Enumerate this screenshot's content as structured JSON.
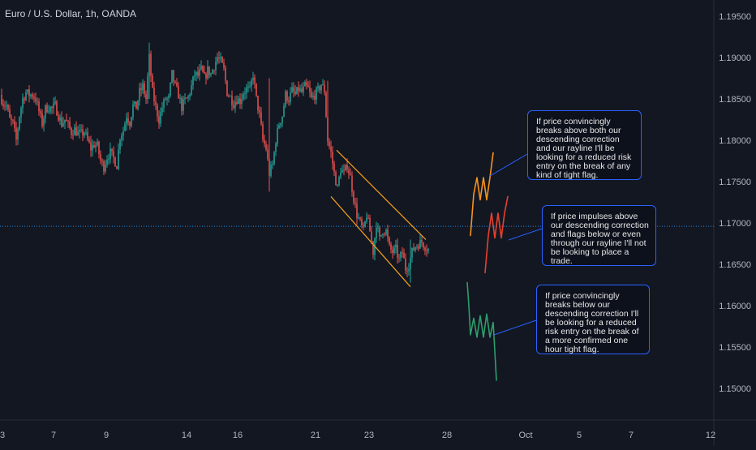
{
  "header": {
    "title": "Euro / U.S. Dollar, 1h, OANDA"
  },
  "colors": {
    "background": "#131722",
    "up_candle": "#26a69a",
    "down_candle": "#ef5350",
    "channel": "#f7a21b",
    "scenario_orange": "#f7931e",
    "scenario_red": "#e8402d",
    "scenario_green": "#2e9e6b",
    "annotation_border": "#2962ff",
    "current_price_line": "#2196f3"
  },
  "annotations": [
    {
      "text": "If price convincingly breaks above both our descending correction and our rayline I'll be looking for a reduced risk entry on the break of any kind of tight flag."
    },
    {
      "text": "If price impulses above our descending correction and flags below or even through our rayline I'll not be looking to place a trade."
    },
    {
      "text": "If price convincingly breaks below our descending correction I'll be looking for a reduced risk entry on the break of a more confirmed one hour tight flag."
    }
  ],
  "chart_data": {
    "type": "candlestick",
    "title": "Euro / U.S. Dollar, 1h, OANDA",
    "y_axis": {
      "position": "right",
      "range": [
        1.1455,
        1.1965
      ],
      "tick_labels": [
        "1.19500",
        "1.19000",
        "1.18500",
        "1.18000",
        "1.17500",
        "1.17000",
        "1.16500",
        "1.16000",
        "1.15500",
        "1.15000"
      ]
    },
    "x_axis": {
      "tick_labels": [
        "3",
        "7",
        "9",
        "14",
        "16",
        "21",
        "23",
        "28",
        "Oct",
        "5",
        "7",
        "12"
      ]
    },
    "current_price_line": 1.1696,
    "price_path": [
      [
        0,
        1.1855
      ],
      [
        4,
        1.1845
      ],
      [
        8,
        1.1842
      ],
      [
        12,
        1.1825
      ],
      [
        16,
        1.182
      ],
      [
        20,
        1.18
      ],
      [
        24,
        1.183
      ],
      [
        28,
        1.185
      ],
      [
        32,
        1.1858
      ],
      [
        36,
        1.1855
      ],
      [
        40,
        1.1855
      ],
      [
        44,
        1.185
      ],
      [
        48,
        1.1835
      ],
      [
        52,
        1.182
      ],
      [
        56,
        1.1838
      ],
      [
        60,
        1.184
      ],
      [
        64,
        1.1838
      ],
      [
        68,
        1.1842
      ],
      [
        72,
        1.183
      ],
      [
        76,
        1.182
      ],
      [
        80,
        1.1825
      ],
      [
        84,
        1.1818
      ],
      [
        88,
        1.181
      ],
      [
        92,
        1.1813
      ],
      [
        96,
        1.1808
      ],
      [
        100,
        1.1808
      ],
      [
        104,
        1.181
      ],
      [
        108,
        1.18
      ],
      [
        112,
        1.179
      ],
      [
        116,
        1.1795
      ],
      [
        120,
        1.1793
      ],
      [
        124,
        1.1775
      ],
      [
        128,
        1.1768
      ],
      [
        132,
        1.178
      ],
      [
        136,
        1.1785
      ],
      [
        140,
        1.1778
      ],
      [
        144,
        1.177
      ],
      [
        148,
        1.1805
      ],
      [
        152,
        1.1812
      ],
      [
        156,
        1.183
      ],
      [
        160,
        1.1822
      ],
      [
        164,
        1.1842
      ],
      [
        168,
        1.184
      ],
      [
        172,
        1.1858
      ],
      [
        176,
        1.1865
      ],
      [
        180,
        1.185
      ],
      [
        184,
        1.19
      ],
      [
        188,
        1.1858
      ],
      [
        192,
        1.184
      ],
      [
        196,
        1.1825
      ],
      [
        200,
        1.184
      ],
      [
        204,
        1.185
      ],
      [
        208,
        1.185
      ],
      [
        212,
        1.188
      ],
      [
        216,
        1.1865
      ],
      [
        220,
        1.1855
      ],
      [
        224,
        1.184
      ],
      [
        228,
        1.1848
      ],
      [
        232,
        1.1852
      ],
      [
        236,
        1.1865
      ],
      [
        240,
        1.188
      ],
      [
        244,
        1.1878
      ],
      [
        248,
        1.1885
      ],
      [
        252,
        1.1875
      ],
      [
        256,
        1.1885
      ],
      [
        260,
        1.188
      ],
      [
        264,
        1.189
      ],
      [
        268,
        1.19
      ],
      [
        272,
        1.1895
      ],
      [
        276,
        1.1885
      ],
      [
        280,
        1.1858
      ],
      [
        284,
        1.1852
      ],
      [
        288,
        1.1845
      ],
      [
        292,
        1.185
      ],
      [
        296,
        1.1848
      ],
      [
        300,
        1.1858
      ],
      [
        304,
        1.1862
      ],
      [
        308,
        1.186
      ],
      [
        312,
        1.188
      ],
      [
        316,
        1.185
      ],
      [
        320,
        1.183
      ],
      [
        324,
        1.18
      ],
      [
        328,
        1.179
      ],
      [
        332,
        1.176
      ],
      [
        336,
        1.177
      ],
      [
        340,
        1.18
      ],
      [
        344,
        1.182
      ],
      [
        348,
        1.183
      ],
      [
        352,
        1.1855
      ],
      [
        356,
        1.185
      ],
      [
        360,
        1.186
      ],
      [
        364,
        1.1855
      ],
      [
        368,
        1.1862
      ],
      [
        372,
        1.1858
      ],
      [
        376,
        1.1865
      ],
      [
        380,
        1.1862
      ],
      [
        384,
        1.185
      ],
      [
        388,
        1.1855
      ],
      [
        392,
        1.186
      ],
      [
        396,
        1.1868
      ],
      [
        400,
        1.186
      ],
      [
        404,
        1.18
      ],
      [
        408,
        1.1785
      ],
      [
        412,
        1.176
      ],
      [
        416,
        1.1742
      ],
      [
        420,
        1.1765
      ],
      [
        424,
        1.176
      ],
      [
        428,
        1.177
      ],
      [
        432,
        1.1755
      ],
      [
        436,
        1.173
      ],
      [
        440,
        1.171
      ],
      [
        444,
        1.17
      ],
      [
        448,
        1.169
      ],
      [
        452,
        1.171
      ],
      [
        456,
        1.169
      ],
      [
        460,
        1.1665
      ],
      [
        464,
        1.17
      ],
      [
        468,
        1.168
      ],
      [
        472,
        1.1692
      ],
      [
        476,
        1.169
      ],
      [
        480,
        1.167
      ],
      [
        484,
        1.1665
      ],
      [
        488,
        1.1668
      ],
      [
        492,
        1.1655
      ],
      [
        496,
        1.1665
      ],
      [
        500,
        1.1645
      ],
      [
        504,
        1.165
      ],
      [
        508,
        1.1665
      ],
      [
        512,
        1.1672
      ],
      [
        516,
        1.1675
      ],
      [
        520,
        1.1677
      ],
      [
        524,
        1.1672
      ],
      [
        528,
        1.1668
      ]
    ],
    "descending_channel": {
      "upper": [
        [
          415,
          1.1788
        ],
        [
          525,
          1.168
        ]
      ],
      "lower": [
        [
          408,
          1.1732
        ],
        [
          506,
          1.1623
        ]
      ]
    },
    "scenarios": [
      {
        "name": "orange",
        "path": [
          [
            580,
            1.1685
          ],
          [
            584,
            1.1735
          ],
          [
            588,
            1.1755
          ],
          [
            592,
            1.1728
          ],
          [
            596,
            1.1755
          ],
          [
            600,
            1.1728
          ],
          [
            604,
            1.1755
          ],
          [
            608,
            1.1785
          ]
        ]
      },
      {
        "name": "red",
        "path": [
          [
            598,
            1.164
          ],
          [
            602,
            1.1685
          ],
          [
            606,
            1.1712
          ],
          [
            610,
            1.1682
          ],
          [
            614,
            1.1712
          ],
          [
            618,
            1.1682
          ],
          [
            622,
            1.1712
          ],
          [
            626,
            1.1732
          ]
        ]
      },
      {
        "name": "green",
        "path": [
          [
            576,
            1.1628
          ],
          [
            578,
            1.16
          ],
          [
            580,
            1.1565
          ],
          [
            584,
            1.1585
          ],
          [
            588,
            1.1562
          ],
          [
            592,
            1.1588
          ],
          [
            596,
            1.1562
          ],
          [
            600,
            1.159
          ],
          [
            604,
            1.1562
          ],
          [
            608,
            1.158
          ],
          [
            612,
            1.151
          ]
        ]
      }
    ]
  }
}
